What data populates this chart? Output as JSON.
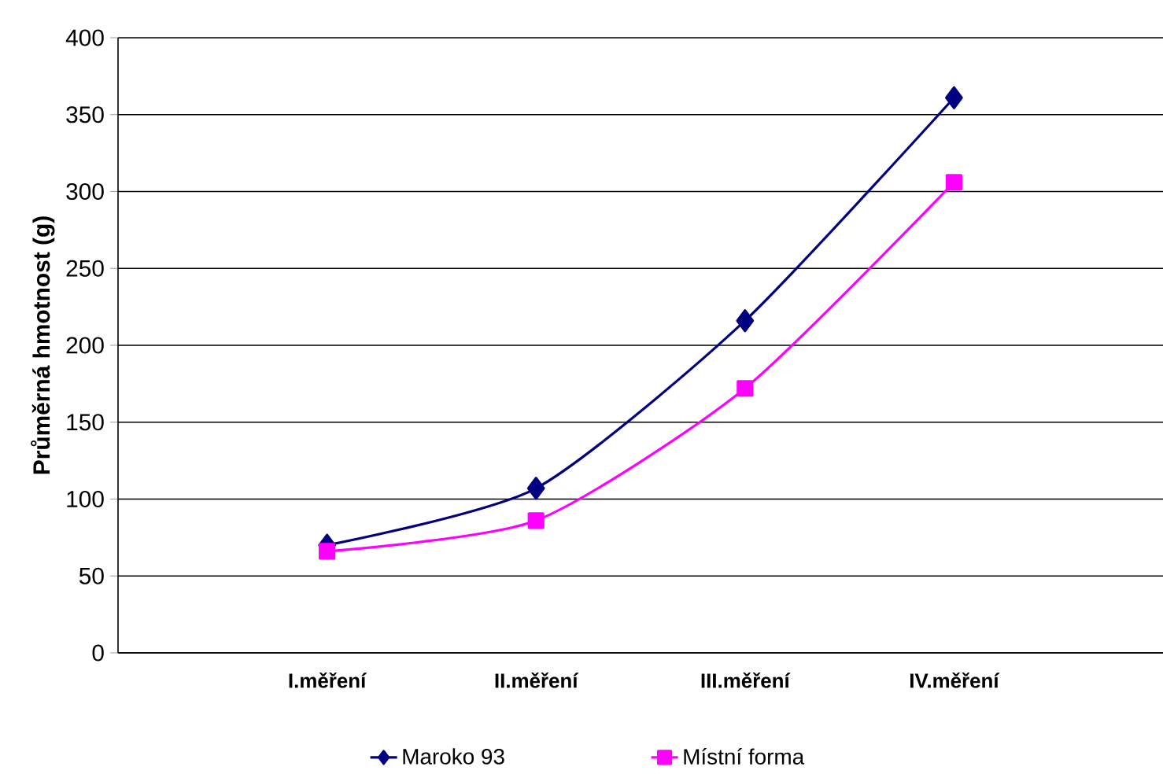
{
  "chart_data": {
    "type": "line",
    "ylabel": "Průměrná hmotnost (g)",
    "categories": [
      "I.měření",
      "II.měření",
      "III.měření",
      "IV.měření"
    ],
    "series": [
      {
        "name": "Maroko 93",
        "color": "#000080",
        "marker": "diamond",
        "values": [
          70,
          107,
          216,
          361
        ]
      },
      {
        "name": "Místní forma",
        "color": "#ff00ff",
        "marker": "square",
        "values": [
          66,
          86,
          172,
          306
        ]
      }
    ],
    "ylim": [
      0,
      400
    ],
    "yticks": [
      0,
      50,
      100,
      150,
      200,
      250,
      300,
      350,
      400
    ],
    "grid": "y",
    "legend": "bottom"
  }
}
